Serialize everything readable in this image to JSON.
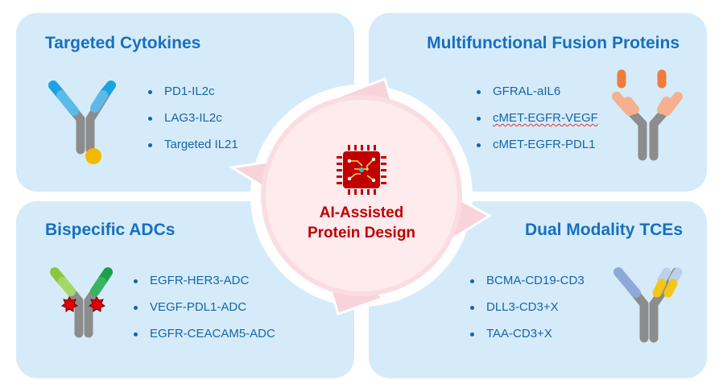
{
  "center": {
    "line1": "AI-Assisted",
    "line2": "Protein Design",
    "icon": "chip-icon"
  },
  "panels": {
    "targeted_cytokines": {
      "title": "Targeted Cytokines",
      "items": [
        "PD1-IL2c",
        "LAG3-IL2c",
        "Targeted IL21"
      ]
    },
    "multifunctional": {
      "title": "Multifunctional Fusion Proteins",
      "items": [
        "GFRAL-aIL6",
        "cMET-EGFR-VEGF",
        "cMET-EGFR-PDL1"
      ]
    },
    "bispecific_adcs": {
      "title": "Bispecific ADCs",
      "items": [
        "EGFR-HER3-ADC",
        "VEGF-PDL1-ADC",
        "EGFR-CEACAM5-ADC"
      ]
    },
    "dual_modality": {
      "title": "Dual Modality TCEs",
      "items": [
        "BCMA-CD19-CD3",
        "DLL3-CD3+X",
        "TAA-CD3+X"
      ]
    }
  },
  "colors": {
    "panel_bg": "#d6ebf9",
    "title": "#1670c0",
    "text": "#1464ad",
    "center_text": "#c00000",
    "antibody_gray": "#8c8c8c",
    "cytokine_blue": "#1aa3e0",
    "cytokine_ball": "#f5b800",
    "fusion_orange": "#ef7c3b",
    "fusion_peach": "#f6b08d",
    "adc_green": "#8cc63f",
    "adc_dark_green": "#1e9e4a",
    "payload_red": "#e00000",
    "tce_blue": "#8ea9d8",
    "tce_light": "#bdd0ea",
    "tce_yellow": "#f5c518"
  }
}
